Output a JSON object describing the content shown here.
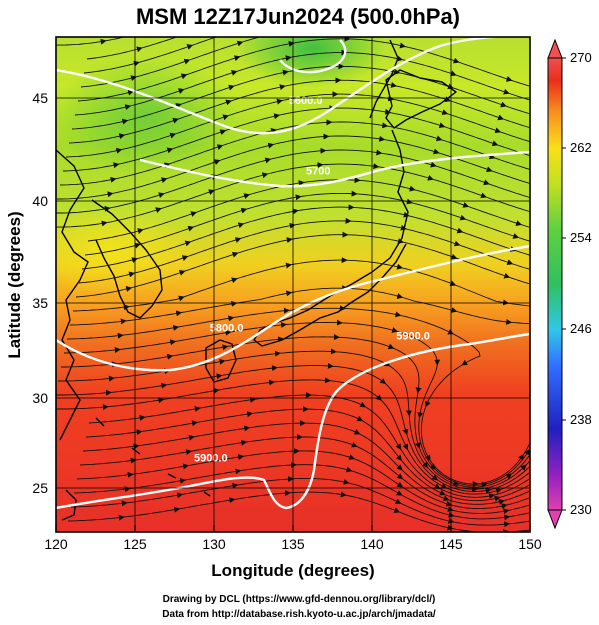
{
  "title": "MSM 12Z17Jun2024 (500.0hPa)",
  "xlabel": "Longitude (degrees)",
  "ylabel": "Latitude  (degrees)",
  "credits": [
    "Drawing by DCL (https://www.gfd-dennou.org/library/dcl/)",
    "Data from http://database.rish.kyoto-u.ac.jp/arch/jmadata/"
  ],
  "map": {
    "lon_range": [
      120,
      150
    ],
    "lat_range": [
      22.4,
      47.6
    ],
    "lon_ticks": [
      120,
      125,
      130,
      135,
      140,
      145,
      150
    ],
    "lat_ticks": [
      25,
      30,
      35,
      40,
      45
    ],
    "lon_tick_labels": [
      "120",
      "125",
      "130",
      "135",
      "140",
      "145",
      "150"
    ],
    "lat_tick_labels": [
      "25",
      "30",
      "35",
      "40",
      "45"
    ],
    "grid": true,
    "field": "temperature (K)",
    "colormap": [
      "#e040b0",
      "#2020c0",
      "#3060ff",
      "#30d0e0",
      "#40c040",
      "#a0e020",
      "#f0e020",
      "#ff9020",
      "#e02010",
      "#f05050"
    ],
    "colorbar": {
      "min": 230,
      "max": 270,
      "ticks": [
        230,
        238,
        246,
        254,
        262,
        270
      ],
      "tick_labels": [
        "230",
        "238",
        "246",
        "254",
        "262",
        "270"
      ]
    },
    "contour_labels": [
      {
        "text": "5600.0",
        "lon": 135.8,
        "lat": 44.2
      },
      {
        "text": "5700",
        "lon": 136.6,
        "lat": 40.6
      },
      {
        "text": "5800.0",
        "lon": 130.8,
        "lat": 32.6
      },
      {
        "text": "5900.0",
        "lon": 142.6,
        "lat": 32.2
      },
      {
        "text": "5900.0",
        "lon": 129.8,
        "lat": 26.0
      }
    ]
  }
}
